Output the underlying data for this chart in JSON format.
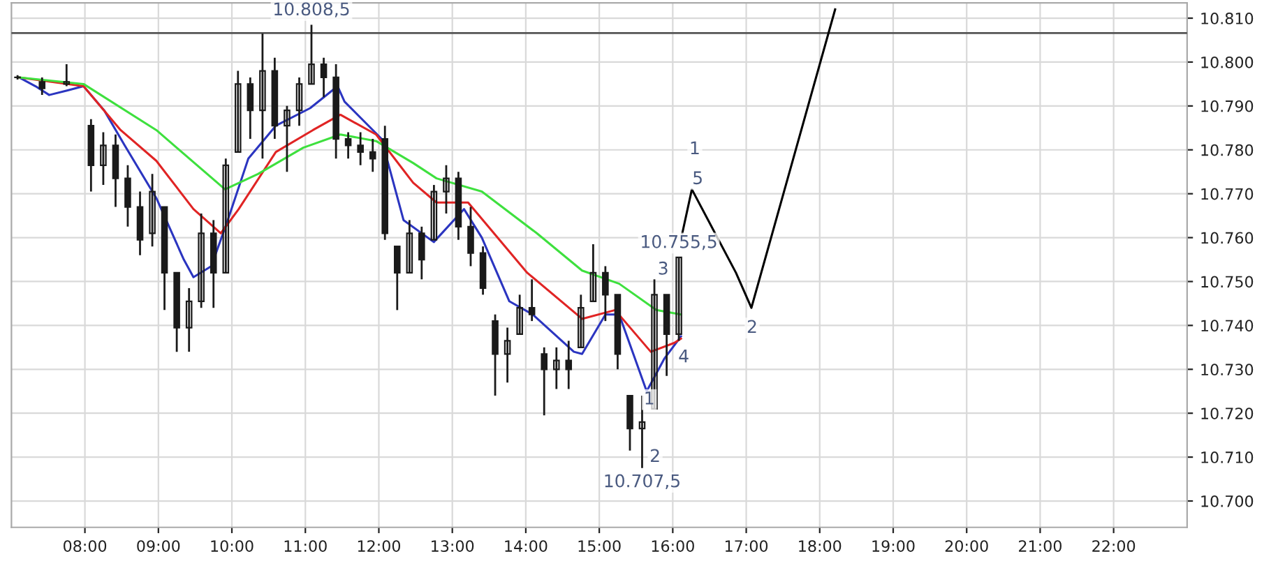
{
  "chart_data": {
    "type": "candlestick",
    "x": [
      7.083,
      7.417,
      7.75,
      8.083,
      8.25,
      8.417,
      8.583,
      8.75,
      8.917,
      9.083,
      9.25,
      9.417,
      9.583,
      9.75,
      9.917,
      10.083,
      10.25,
      10.417,
      10.583,
      10.75,
      10.917,
      11.083,
      11.25,
      11.417,
      11.583,
      11.75,
      11.917,
      12.083,
      12.25,
      12.417,
      12.583,
      12.75,
      12.917,
      13.083,
      13.25,
      13.417,
      13.583,
      13.75,
      13.917,
      14.083,
      14.25,
      14.417,
      14.583,
      14.75,
      14.917,
      15.083,
      15.25,
      15.417,
      15.583,
      15.75,
      15.917,
      16.083
    ],
    "ohlc": [
      [
        10796.5,
        10797,
        10796,
        10796.5
      ],
      [
        10795.5,
        10796.5,
        10792.5,
        10794
      ],
      [
        10795,
        10799.5,
        10794.5,
        10795.5
      ],
      [
        10785.5,
        10787,
        10770.5,
        10776.5
      ],
      [
        10776.5,
        10784,
        10772,
        10781
      ],
      [
        10781,
        10783.5,
        10767,
        10773.5
      ],
      [
        10773.5,
        10776.5,
        10762.5,
        10767
      ],
      [
        10767,
        10770.5,
        10756,
        10759.5
      ],
      [
        10761,
        10774.5,
        10758,
        10770.5
      ],
      [
        10767,
        10767,
        10743.5,
        10752
      ],
      [
        10752,
        10752,
        10734,
        10739.5
      ],
      [
        10739.5,
        10748.5,
        10734,
        10745.5
      ],
      [
        10745.5,
        10765.5,
        10744,
        10761
      ],
      [
        10761,
        10764,
        10744,
        10752
      ],
      [
        10752,
        10778,
        10752,
        10776.5
      ],
      [
        10779.5,
        10798,
        10779.5,
        10795
      ],
      [
        10795,
        10796.5,
        10782.5,
        10789
      ],
      [
        10789,
        10806.5,
        10778,
        10798
      ],
      [
        10798,
        10801,
        10782.5,
        10785.5
      ],
      [
        10785.5,
        10790,
        10775,
        10789
      ],
      [
        10789,
        10796.5,
        10785.5,
        10795
      ],
      [
        10795,
        10808.5,
        10795,
        10799.5
      ],
      [
        10799.5,
        10801,
        10792,
        10796.5
      ],
      [
        10796.5,
        10799.5,
        10778,
        10782.5
      ],
      [
        10782.5,
        10784,
        10778,
        10781
      ],
      [
        10781,
        10784,
        10776.5,
        10779.5
      ],
      [
        10779.5,
        10782.5,
        10775,
        10778
      ],
      [
        10782.5,
        10785.5,
        10759.5,
        10761
      ],
      [
        10758,
        10758,
        10743.5,
        10752
      ],
      [
        10752,
        10764,
        10752,
        10761
      ],
      [
        10761,
        10762.5,
        10750.5,
        10755
      ],
      [
        10759.5,
        10772,
        10759.5,
        10770.5
      ],
      [
        10770.5,
        10776.5,
        10765.5,
        10773.5
      ],
      [
        10773.5,
        10775,
        10759.5,
        10762.5
      ],
      [
        10762.5,
        10767,
        10753.5,
        10756.5
      ],
      [
        10756.5,
        10758,
        10747,
        10748.5
      ],
      [
        10741,
        10742.5,
        10724,
        10733.5
      ],
      [
        10733.5,
        10739.5,
        10727,
        10736.5
      ],
      [
        10738,
        10747,
        10738,
        10744
      ],
      [
        10744,
        10750.5,
        10741,
        10742.5
      ],
      [
        10733.5,
        10735,
        10719.5,
        10730
      ],
      [
        10730,
        10735,
        10725.5,
        10732
      ],
      [
        10732,
        10736.5,
        10725.5,
        10730
      ],
      [
        10735,
        10747,
        10735,
        10744
      ],
      [
        10745.5,
        10758.5,
        10745.5,
        10752
      ],
      [
        10752,
        10753.5,
        10741,
        10747
      ],
      [
        10747,
        10747,
        10730,
        10733.5
      ],
      [
        10724,
        10724,
        10711.5,
        10716.5
      ],
      [
        10716.5,
        10724,
        10707.5,
        10718
      ],
      [
        10721,
        10750.5,
        10721,
        10747
      ],
      [
        10747,
        10747,
        10728.5,
        10738
      ],
      [
        10738,
        10755.5,
        10736.5,
        10755.5
      ]
    ],
    "color": "#1a1a1a",
    "series": [
      {
        "type": "line",
        "color": "#2b35c0",
        "x": [
          7.103,
          7.327,
          7.514,
          7.757,
          7.981,
          8.262,
          8.542,
          8.972,
          9.346,
          9.477,
          9.72,
          9.944,
          10.224,
          10.598,
          11.065,
          11.439,
          11.533,
          12.037,
          12.336,
          12.748,
          13.159,
          13.402,
          13.776,
          14.093,
          14.654,
          14.766,
          15.084,
          15.271,
          15.645,
          15.888,
          16.112
        ],
        "values": [
          10796.5,
          10794.5,
          10792.5,
          10793.5,
          10794.5,
          10789,
          10781,
          10769,
          10755,
          10751,
          10753.5,
          10764,
          10778,
          10785.5,
          10789.5,
          10794.5,
          10791,
          10782.5,
          10764,
          10759,
          10766.5,
          10760,
          10745.5,
          10742.5,
          10734,
          10733.5,
          10742.5,
          10742.5,
          10725,
          10732.5,
          10737.5
        ]
      },
      {
        "type": "line",
        "color": "#e02424",
        "x": [
          7.103,
          7.981,
          8.486,
          8.972,
          9.477,
          9.85,
          10.093,
          10.598,
          11.103,
          11.477,
          11.963,
          12.467,
          12.785,
          13.215,
          14.019,
          14.766,
          15.215,
          15.701,
          16.019,
          16.112
        ],
        "values": [
          10796.5,
          10794.5,
          10784.5,
          10777.5,
          10766.5,
          10761,
          10766.5,
          10779.5,
          10784.5,
          10788,
          10783.5,
          10772.5,
          10768,
          10768,
          10752,
          10741.5,
          10743.5,
          10734,
          10736,
          10737
        ]
      },
      {
        "type": "line",
        "color": "#3ee03e",
        "x": [
          7.103,
          7.981,
          8.972,
          9.907,
          10.355,
          10.972,
          11.477,
          11.963,
          12.467,
          12.785,
          13.402,
          14.15,
          14.766,
          15.271,
          15.776,
          16.112
        ],
        "values": [
          10796.5,
          10795,
          10784.5,
          10771,
          10774.5,
          10780.5,
          10783.5,
          10782,
          10777,
          10773.5,
          10770.5,
          10761,
          10752.5,
          10749.5,
          10743.5,
          10742.5
        ]
      },
      {
        "type": "line",
        "color": "#000000",
        "x": [
          16.13,
          16.26,
          16.86,
          17.07,
          18.21
        ],
        "values": [
          10761,
          10771,
          10752,
          10744,
          10812
        ]
      }
    ],
    "xlim": [
      7.0,
      23.0
    ],
    "xticks": [
      {
        "value": 8,
        "label": "08:00"
      },
      {
        "value": 9,
        "label": "09:00"
      },
      {
        "value": 10,
        "label": "10:00"
      },
      {
        "value": 11,
        "label": "11:00"
      },
      {
        "value": 12,
        "label": "12:00"
      },
      {
        "value": 13,
        "label": "13:00"
      },
      {
        "value": 14,
        "label": "14:00"
      },
      {
        "value": 15,
        "label": "15:00"
      },
      {
        "value": 16,
        "label": "16:00"
      },
      {
        "value": 17,
        "label": "17:00"
      },
      {
        "value": 18,
        "label": "18:00"
      },
      {
        "value": 19,
        "label": "19:00"
      },
      {
        "value": 20,
        "label": "20:00"
      },
      {
        "value": 21,
        "label": "21:00"
      },
      {
        "value": 22,
        "label": "22:00"
      }
    ],
    "ylim": [
      10694,
      10813.5
    ],
    "yticks": [
      {
        "value": 10700,
        "label": "10.700"
      },
      {
        "value": 10710,
        "label": "10.710"
      },
      {
        "value": 10720,
        "label": "10.720"
      },
      {
        "value": 10730,
        "label": "10.730"
      },
      {
        "value": 10740,
        "label": "10.740"
      },
      {
        "value": 10750,
        "label": "10.750"
      },
      {
        "value": 10760,
        "label": "10.760"
      },
      {
        "value": 10770,
        "label": "10.770"
      },
      {
        "value": 10780,
        "label": "10.780"
      },
      {
        "value": 10790,
        "label": "10.790"
      },
      {
        "value": 10800,
        "label": "10.800"
      },
      {
        "value": 10810,
        "label": "10.810"
      }
    ],
    "ref_lines": [
      {
        "axis": "y",
        "value": 10806.6,
        "color": "#555555"
      }
    ],
    "grid": true,
    "annotations": [
      {
        "text": "10.808,5",
        "x": 11.083,
        "y": 10808.5
      },
      {
        "text": "10.707,5",
        "x": 15.583,
        "y": 10707.5
      },
      {
        "text": "10.755,5",
        "x": 16.083,
        "y": 10755.5
      },
      {
        "text": "1",
        "x": 16.3,
        "y": 10780.1
      },
      {
        "text": "5",
        "x": 16.34,
        "y": 10773.3
      },
      {
        "text": "3",
        "x": 15.87,
        "y": 10752.7
      },
      {
        "text": "4",
        "x": 16.15,
        "y": 10732.7
      },
      {
        "text": "1",
        "x": 15.68,
        "y": 10723.1
      },
      {
        "text": "2",
        "x": 15.76,
        "y": 10710
      },
      {
        "text": "2",
        "x": 17.08,
        "y": 10739.4
      }
    ]
  }
}
